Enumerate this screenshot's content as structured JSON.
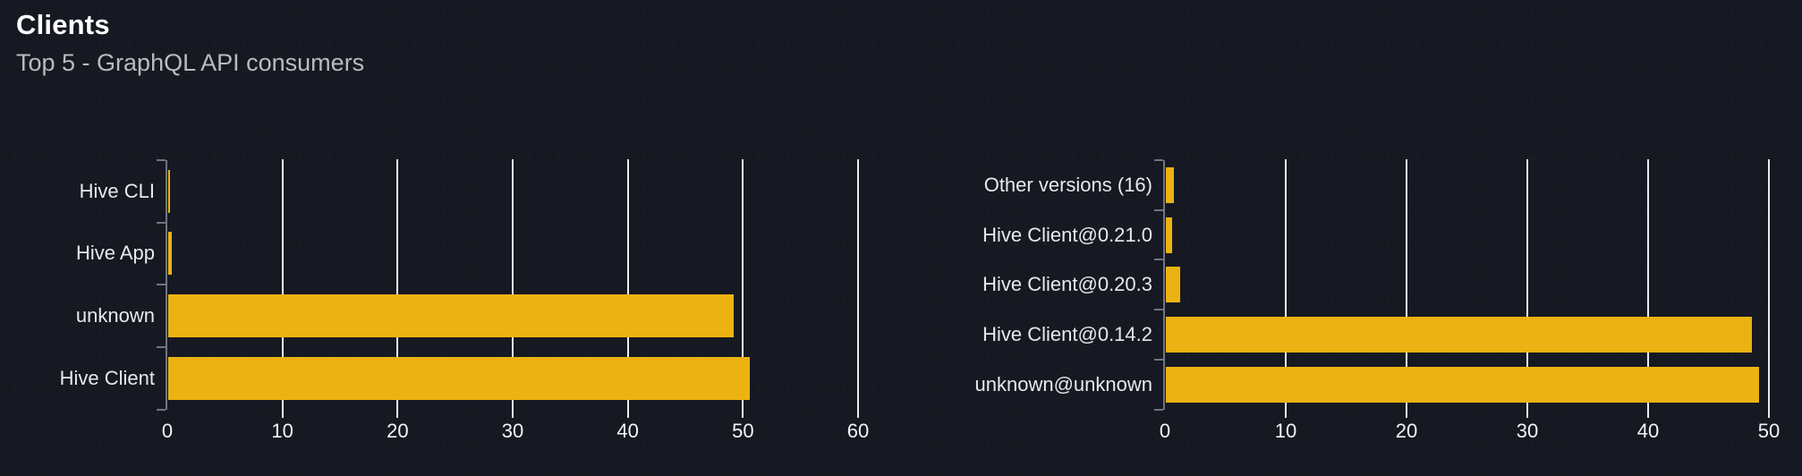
{
  "header": {
    "title": "Clients",
    "subtitle": "Top 5 - GraphQL API consumers"
  },
  "colors": {
    "background": "#161921",
    "bar": "#ecb211",
    "grid": "#e8ebf0",
    "axis": "#6e7681",
    "category_label": "#e7e9ec",
    "tick_label": "#f2f4f6",
    "title": "#ffffff",
    "subtitle": "#b8bcc2"
  },
  "chart_data": [
    {
      "type": "bar",
      "orientation": "horizontal",
      "name": "clients-by-name",
      "categories": [
        "Hive CLI",
        "Hive App",
        "unknown",
        "Hive Client"
      ],
      "values": [
        0.15,
        0.3,
        49.1,
        50.5
      ],
      "xlim": [
        0,
        60
      ],
      "xticks": [
        0,
        10,
        20,
        30,
        40,
        50,
        60
      ],
      "grid": true,
      "legend": "none",
      "bar_color": "#ecb211"
    },
    {
      "type": "bar",
      "orientation": "horizontal",
      "name": "clients-by-version",
      "categories": [
        "Other versions (16)",
        "Hive Client@0.21.0",
        "Hive Client@0.20.3",
        "Hive Client@0.14.2",
        "unknown@unknown"
      ],
      "values": [
        0.65,
        0.5,
        1.2,
        48.5,
        49.1
      ],
      "xlim": [
        0,
        50
      ],
      "xticks": [
        0,
        10,
        20,
        30,
        40,
        50
      ],
      "grid": true,
      "legend": "none",
      "bar_color": "#ecb211"
    }
  ]
}
